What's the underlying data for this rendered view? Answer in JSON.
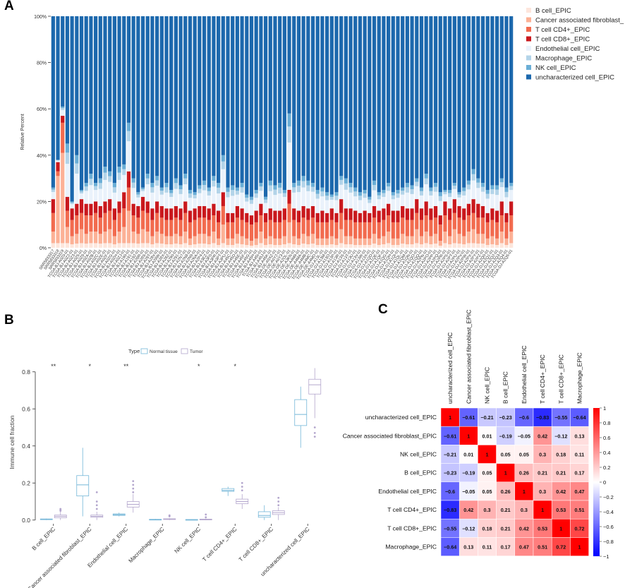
{
  "panels": {
    "a": "A",
    "b": "B",
    "c": "C"
  },
  "chart_data": [
    {
      "type": "bar",
      "subtype": "stacked-percent",
      "title": "",
      "ylabel": "Relative Percent",
      "yticks": [
        "0%",
        "20%",
        "40%",
        "60%",
        "80%",
        "100%"
      ],
      "ylim": [
        0,
        100
      ],
      "series": [
        {
          "name": "B cell_EPIC",
          "color": "#fde6dc"
        },
        {
          "name": "Cancer associated fibroblast_",
          "color": "#fcb196"
        },
        {
          "name": "T cell CD4+_EPIC",
          "color": "#f26b4f"
        },
        {
          "name": "T cell CD8+_EPIC",
          "color": "#c9181d"
        },
        {
          "name": "Endothelial cell_EPIC",
          "color": "#eaf2fb"
        },
        {
          "name": "Macrophage_EPIC",
          "color": "#b3d4e9"
        },
        {
          "name": "NK cell_EPIC",
          "color": "#6aaed6"
        },
        {
          "name": "uncharacterized cell_EPIC",
          "color": "#1c68ad"
        }
      ],
      "categories": [
        "SRR5833317",
        "SRR5833318",
        "SRR5833319",
        "TCGA-BJ-A0Z0-01",
        "TCGA-BJ-A0Z2-01",
        "TCGA-BJ-A0Z3-01",
        "TCGA-BJ-A0Z5-01",
        "TCGA-BJ-A0Z9-01",
        "TCGA-BJ-A0ZA-01",
        "TCGA-BJ-A0ZB-01",
        "TCGA-BJ-A0ZC-01",
        "TCGA-BJ-A0ZE-01",
        "TCGA-BJ-A0ZF-01",
        "TCGA-BJ-A0ZG-01",
        "TCGA-BJ-A0ZH-01",
        "TCGA-BJ-A0ZJ-01",
        "TCGA-BJ-A190-01",
        "TCGA-BJ-A191-01",
        "TCGA-BJ-A192-01",
        "TCGA-BJ-A28R-01",
        "TCGA-BJ-A28S-01",
        "TCGA-BJ-A28T-01",
        "TCGA-BJ-A28V-01",
        "TCGA-BJ-A28W-01",
        "TCGA-BJ-A28X-01",
        "TCGA-BJ-A28Z-01",
        "TCGA-BJ-A290-01",
        "TCGA-BJ-A291-01",
        "TCGA-BJ-A2N7-01",
        "TCGA-BJ-A2N8-01",
        "TCGA-BJ-A2N9-01",
        "TCGA-BJ-A2NA-01",
        "TCGA-BJ-A2P4-01",
        "TCGA-BJ-A3EZ-01",
        "TCGA-BJ-A3F0-01",
        "TCGA-BJ-A3PR-01",
        "TCGA-BJ-A3PT-01",
        "TCGA-BJ-A3PU-01",
        "TCGA-BJ-A45C-01",
        "TCGA-BJ-A45D-01",
        "TCGA-BJ-A45E-01",
        "TCGA-BJ-A45F-01",
        "TCGA-BJ-A45G-01",
        "TCGA-BJ-A45H-01",
        "TCGA-BJ-A45I-01",
        "TCGA-BJ-A45J-01",
        "TCGA-BJ-A45K-01",
        "TCGA-DE-A0XZ-01",
        "TCGA-DE-A0Y2-01",
        "TCGA-DE-A0Y3-01",
        "TCGA-DE-A2OL-01",
        "TCGA-DE-A3KN-01",
        "TCGA-DE-A4M9-01",
        "TCGA-DE-A4MA-01",
        "TCGA-DE-A4MB-01",
        "TCGA-DE-A4MC-01",
        "TCGA-DE-A4MD-01",
        "TCGA-DJ-A13L-01",
        "TCGA-DJ-A13M-01",
        "TCGA-DJ-A13O-01",
        "TCGA-DJ-A13P-01",
        "TCGA-DJ-A13R-01",
        "TCGA-DJ-A13S-01",
        "TCGA-DJ-A13T-01",
        "TCGA-DJ-A13U-01",
        "TCGA-DJ-A13V-01",
        "TCGA-DJ-A13W-01",
        "TCGA-DJ-A13X-01",
        "TCGA-DJ-A1QD-01",
        "TCGA-DJ-A1QE-01",
        "TCGA-DJ-A1QF-01",
        "TCGA-DJ-A1QG-01",
        "TCGA-DJ-A1QH-01",
        "TCGA-DJ-A1QI-01",
        "TCGA-DJ-A1QL-01",
        "TCGA-DJ-A1QM-01",
        "TCGA-DJ-A1QN-01",
        "TCGA-DJ-A1QO-01",
        "TCGA-DJ-A1QQ-01",
        "TCGA-DJ-A2PN-01",
        "TCGA-DJ-A2PO-01",
        "TCGA-DJ-A2PP-01",
        "TCGA-DJ-A2PQ-01",
        "TCGA-DJ-A2PR-01",
        "TCGA-DJ-A2PS-01",
        "TCGA-DJ-A2PT-01",
        "TCGA-DJ-A2PU-01",
        "TCGA-DJ-A2PV-01",
        "TCGA-DJ-A2PW-01",
        "TCGA-DJ-A2PX-01",
        "TCGA-DJ-A2PY-01",
        "TCGA-DJ-A2PZ-01",
        "TCGA-DJ-A2Q0-01",
        "TCGA-DJ-A2Q1-01",
        "TCGA-DJ-A2Q2-01",
        "TCGA-DJ-A2Q3-01",
        "TCGA-DJ-A2Q4-01",
        "TCGA-DJ-A2Q5-01"
      ],
      "stack_notes": "Each bar stacks the 8 series to 100%; uncharacterized cell fraction is the remainder above the listed cumulative values.",
      "totals_non_uncharacterized": [
        26,
        38,
        61,
        45,
        20,
        40,
        25,
        28,
        32,
        28,
        30,
        35,
        33,
        28,
        35,
        36,
        54,
        30,
        24,
        26,
        32,
        28,
        31,
        26,
        28,
        25,
        30,
        27,
        32,
        25,
        24,
        27,
        29,
        26,
        31,
        28,
        40,
        26,
        27,
        26,
        28,
        23,
        22,
        25,
        28,
        22,
        29,
        27,
        28,
        25,
        58,
        28,
        29,
        31,
        29,
        28,
        25,
        26,
        24,
        23,
        24,
        31,
        30,
        28,
        26,
        24,
        25,
        22,
        29,
        24,
        25,
        28,
        24,
        25,
        26,
        28,
        27,
        30,
        26,
        32,
        26,
        28,
        24,
        25,
        25,
        28,
        24,
        26,
        29,
        34,
        30,
        28,
        25,
        27,
        27,
        30,
        26,
        28,
        26,
        30,
        33,
        24,
        28,
        32
      ],
      "cd8_tops": [
        21,
        37,
        57,
        22,
        17,
        19,
        21,
        19,
        19,
        20,
        18,
        20,
        21,
        17,
        20,
        24,
        33,
        19,
        18,
        22,
        20,
        17,
        20,
        18,
        17,
        17,
        18,
        17,
        20,
        16,
        17,
        18,
        18,
        17,
        19,
        16,
        24,
        15,
        15,
        18,
        17,
        15,
        14,
        16,
        19,
        15,
        17,
        16,
        16,
        17,
        25,
        17,
        16,
        18,
        17,
        18,
        15,
        16,
        15,
        17,
        15,
        21,
        17,
        17,
        16,
        15,
        16,
        15,
        18,
        16,
        17,
        19,
        16,
        16,
        18,
        17,
        17,
        21,
        17,
        20,
        17,
        18,
        14,
        20,
        17,
        21,
        18,
        17,
        19,
        21,
        19,
        18,
        15,
        17,
        16,
        20,
        15,
        20,
        17,
        18,
        21,
        17,
        18,
        21
      ],
      "cd4_tops": [
        15,
        33,
        54,
        16,
        12,
        14,
        15,
        14,
        14,
        15,
        13,
        15,
        16,
        12,
        15,
        17,
        26,
        14,
        13,
        16,
        15,
        12,
        15,
        13,
        12,
        12,
        13,
        12,
        15,
        11,
        12,
        13,
        13,
        12,
        14,
        11,
        18,
        11,
        11,
        13,
        12,
        11,
        10,
        11,
        14,
        11,
        12,
        11,
        11,
        12,
        19,
        12,
        11,
        13,
        12,
        13,
        11,
        11,
        11,
        12,
        11,
        15,
        12,
        12,
        11,
        11,
        11,
        11,
        13,
        11,
        12,
        14,
        11,
        11,
        13,
        12,
        12,
        15,
        12,
        14,
        12,
        13,
        10,
        14,
        12,
        15,
        13,
        12,
        14,
        15,
        13,
        13,
        11,
        12,
        11,
        14,
        11,
        14,
        12,
        13,
        15,
        12,
        13,
        15
      ],
      "caf_tops": [
        7,
        31,
        41,
        9,
        5,
        6,
        8,
        6,
        7,
        7,
        6,
        7,
        8,
        5,
        7,
        9,
        16,
        7,
        6,
        8,
        7,
        5,
        7,
        6,
        5,
        5,
        6,
        5,
        7,
        4,
        5,
        6,
        6,
        5,
        7,
        4,
        10,
        4,
        4,
        6,
        5,
        4,
        3,
        4,
        7,
        4,
        5,
        4,
        4,
        5,
        11,
        5,
        4,
        6,
        5,
        6,
        4,
        4,
        4,
        5,
        4,
        8,
        5,
        5,
        4,
        4,
        4,
        4,
        6,
        4,
        5,
        7,
        4,
        4,
        6,
        5,
        5,
        8,
        5,
        7,
        5,
        6,
        3,
        7,
        5,
        8,
        6,
        5,
        7,
        8,
        6,
        6,
        4,
        5,
        4,
        7,
        4,
        7,
        5,
        6,
        8,
        5,
        6,
        8
      ]
    },
    {
      "type": "box",
      "legend_title": "Type",
      "groups": [
        {
          "name": "Normal tissue",
          "color": "#74b6d8"
        },
        {
          "name": "Tumor",
          "color": "#b3a6cd"
        }
      ],
      "ylabel": "Immune cell fraction",
      "yticks": [
        "0.0",
        "0.2",
        "0.4",
        "0.6",
        "0.8"
      ],
      "ylim": [
        -0.02,
        0.86
      ],
      "categories": [
        "B cell_EPIC",
        "Cancer associated fibroblast_EPIC",
        "Endothelial cell_EPIC",
        "Macrophage_EPIC",
        "NK cell_EPIC",
        "T cell CD4+_EPIC",
        "T cell CD8+_EPIC",
        "uncharacterized cell_EPIC"
      ],
      "significance": [
        "**",
        "*",
        "**",
        "",
        "*",
        "*",
        "",
        ""
      ],
      "normal": [
        {
          "min": 0.0,
          "q1": 0.003,
          "med": 0.005,
          "q3": 0.006,
          "max": 0.008,
          "out": []
        },
        {
          "min": 0.02,
          "q1": 0.13,
          "med": 0.19,
          "q3": 0.24,
          "max": 0.39,
          "out": []
        },
        {
          "min": 0.02,
          "q1": 0.025,
          "med": 0.029,
          "q3": 0.033,
          "max": 0.04,
          "out": []
        },
        {
          "min": 0.0,
          "q1": 0.002,
          "med": 0.003,
          "q3": 0.004,
          "max": 0.006,
          "out": []
        },
        {
          "min": 0.0,
          "q1": 0.001,
          "med": 0.002,
          "q3": 0.003,
          "max": 0.004,
          "out": []
        },
        {
          "min": 0.13,
          "q1": 0.155,
          "med": 0.16,
          "q3": 0.17,
          "max": 0.18,
          "out": []
        },
        {
          "min": 0.0,
          "q1": 0.015,
          "med": 0.025,
          "q3": 0.045,
          "max": 0.08,
          "out": []
        },
        {
          "min": 0.39,
          "q1": 0.51,
          "med": 0.57,
          "q3": 0.65,
          "max": 0.72,
          "out": []
        }
      ],
      "tumor": [
        {
          "min": 0.0,
          "q1": 0.012,
          "med": 0.02,
          "q3": 0.027,
          "max": 0.045,
          "out": [
            0.05,
            0.055,
            0.06
          ]
        },
        {
          "min": 0.0,
          "q1": 0.015,
          "med": 0.02,
          "q3": 0.027,
          "max": 0.045,
          "out": [
            0.06,
            0.08,
            0.1,
            0.15
          ]
        },
        {
          "min": 0.04,
          "q1": 0.07,
          "med": 0.085,
          "q3": 0.1,
          "max": 0.14,
          "out": [
            0.15,
            0.17,
            0.19,
            0.21
          ]
        },
        {
          "min": 0.0,
          "q1": 0.003,
          "med": 0.005,
          "q3": 0.007,
          "max": 0.01,
          "out": [
            0.02,
            0.025
          ]
        },
        {
          "min": 0.0,
          "q1": 0.001,
          "med": 0.003,
          "q3": 0.005,
          "max": 0.008,
          "out": [
            0.015,
            0.03
          ]
        },
        {
          "min": 0.06,
          "q1": 0.088,
          "med": 0.1,
          "q3": 0.113,
          "max": 0.14,
          "out": [
            0.16,
            0.18,
            0.2
          ]
        },
        {
          "min": 0.0,
          "q1": 0.03,
          "med": 0.04,
          "q3": 0.05,
          "max": 0.07,
          "out": [
            0.08,
            0.1,
            0.12
          ]
        },
        {
          "min": 0.55,
          "q1": 0.68,
          "med": 0.73,
          "q3": 0.76,
          "max": 0.82,
          "out": [
            0.5,
            0.47,
            0.45
          ]
        }
      ]
    },
    {
      "type": "heatmap",
      "labels": [
        "uncharacterized cell_EPIC",
        "Cancer associated fibroblast_EPIC",
        "NK cell_EPIC",
        "B cell_EPIC",
        "Endothelial cell_EPIC",
        "T cell CD4+_EPIC",
        "T cell CD8+_EPIC",
        "Macrophage_EPIC"
      ],
      "matrix": [
        [
          1,
          -0.61,
          -0.21,
          -0.23,
          -0.6,
          -0.83,
          -0.55,
          -0.64
        ],
        [
          -0.61,
          1,
          0.01,
          -0.19,
          -0.05,
          0.42,
          -0.12,
          0.13
        ],
        [
          -0.21,
          0.01,
          1,
          0.05,
          0.05,
          0.3,
          0.18,
          0.11
        ],
        [
          -0.23,
          -0.19,
          0.05,
          1,
          0.26,
          0.21,
          0.21,
          0.17
        ],
        [
          -0.6,
          -0.05,
          0.05,
          0.26,
          1,
          0.3,
          0.42,
          0.47
        ],
        [
          -0.83,
          0.42,
          0.3,
          0.21,
          0.3,
          1,
          0.53,
          0.51
        ],
        [
          -0.55,
          -0.12,
          0.18,
          0.21,
          0.42,
          0.53,
          1,
          0.72
        ],
        [
          -0.64,
          0.13,
          0.11,
          0.17,
          0.47,
          0.51,
          0.72,
          1
        ]
      ],
      "colorbar_ticks": [
        "1",
        "0.8",
        "0.6",
        "0.4",
        "0.2",
        "0",
        "−0.2",
        "−0.4",
        "−0.6",
        "−0.8",
        "−1"
      ],
      "colors": {
        "neg": "#0000ff",
        "mid": "#ffffff",
        "pos": "#ff0000"
      }
    }
  ]
}
